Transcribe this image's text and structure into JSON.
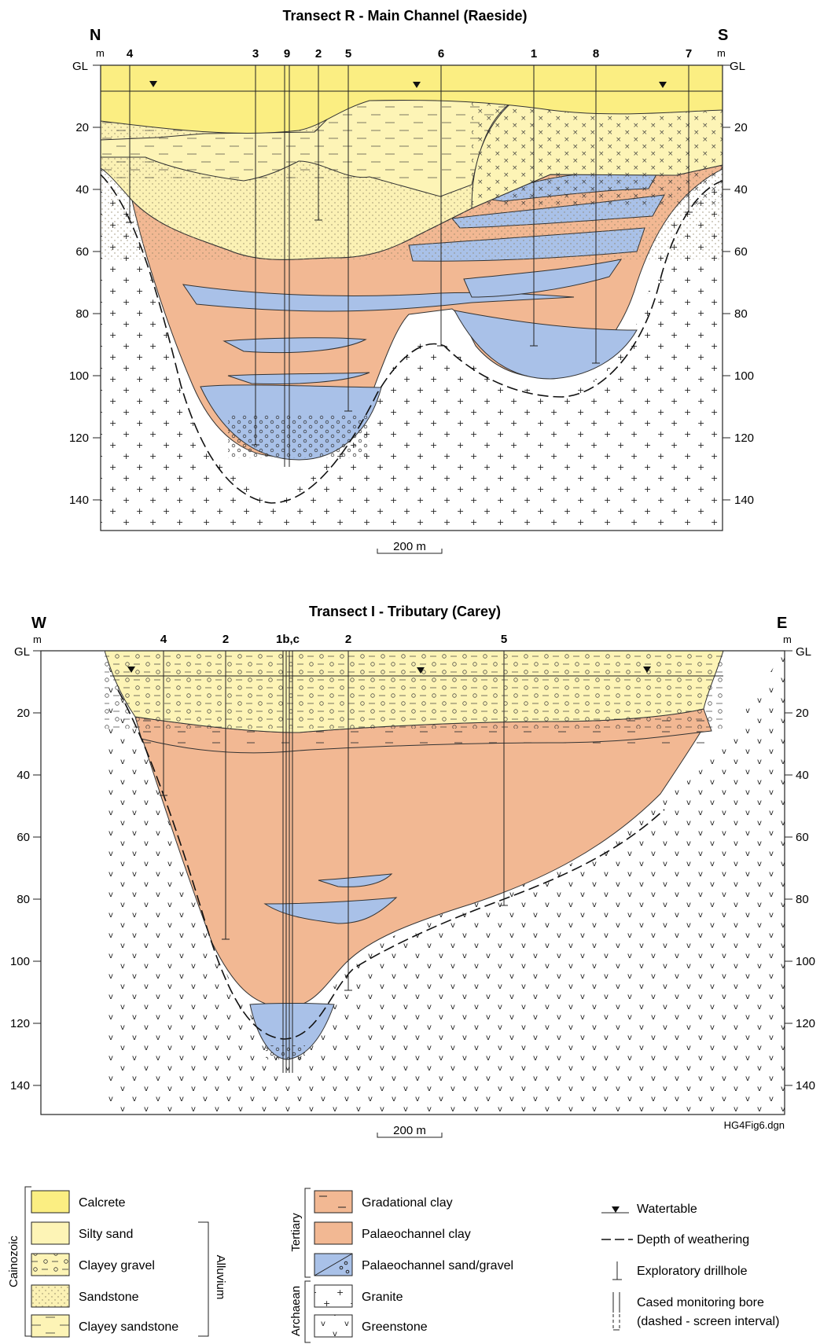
{
  "transect_r": {
    "title": "Transect R - Main Channel (Raeside)",
    "left_dir": "N",
    "right_dir": "S",
    "unit": "m",
    "gl_label": "GL",
    "depth_ticks": [
      "20",
      "40",
      "60",
      "80",
      "100",
      "120",
      "140"
    ],
    "bores": [
      "4",
      "3",
      "9",
      "2",
      "5",
      "6",
      "1",
      "8",
      "7"
    ],
    "scale_label": "200 m"
  },
  "transect_i": {
    "title": "Transect I - Tributary (Carey)",
    "left_dir": "W",
    "right_dir": "E",
    "unit": "m",
    "gl_label": "GL",
    "depth_ticks": [
      "20",
      "40",
      "60",
      "80",
      "100",
      "120",
      "140"
    ],
    "bores": [
      "4",
      "2",
      "1b,c",
      "2",
      "5"
    ],
    "scale_label": "200 m",
    "file_ref": "HG4Fig6.dgn"
  },
  "legend": {
    "group_cainozoic": "Cainozoic",
    "group_alluvium": "Alluvium",
    "group_tertiary": "Tertiary",
    "group_archaean": "Archaean",
    "items": {
      "calcrete": "Calcrete",
      "silty_sand": "Silty sand",
      "clayey_gravel": "Clayey gravel",
      "sandstone": "Sandstone",
      "clayey_sandstone": "Clayey sandstone",
      "gradational_clay": "Gradational clay",
      "palaeochannel_clay": "Palaeochannel clay",
      "palaeochannel_sand": "Palaeochannel sand/gravel",
      "granite": "Granite",
      "greenstone": "Greenstone"
    },
    "symbols": {
      "watertable": "Watertable",
      "weathering": "Depth of weathering",
      "drillhole": "Exploratory drillhole",
      "bore": "Cased monitoring bore",
      "bore_note": "(dashed - screen interval)"
    }
  },
  "colors": {
    "calcrete": "#fbee82",
    "silty_sand": "#fdf4b6",
    "sandstone": "#fbf1b4",
    "clay": "#f2b893",
    "sand": "#a9c1e8"
  }
}
